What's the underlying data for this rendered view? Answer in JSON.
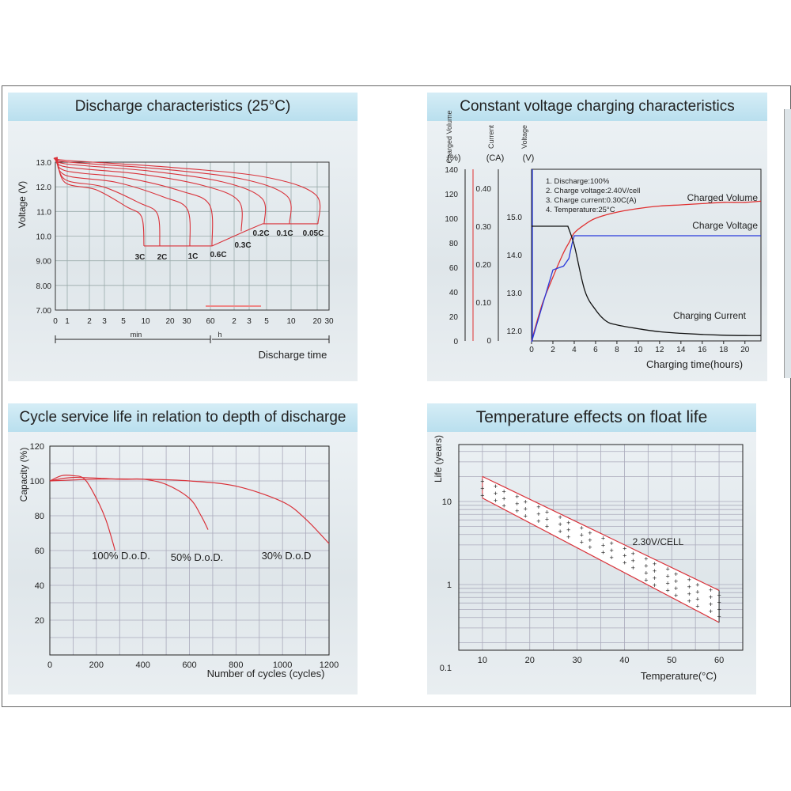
{
  "panels": {
    "discharge": {
      "title": "Discharge characteristics (25°C)",
      "ylabel": "Voltage (V)",
      "yticks": [
        "13.0",
        "12.0",
        "11.0",
        "10.0",
        "9.00",
        "8.00",
        "7.00"
      ],
      "xticks": [
        "0",
        "1",
        "2",
        "3",
        "5",
        "10",
        "20",
        "30",
        "60",
        "2",
        "3",
        "5",
        "10",
        "20",
        "30"
      ],
      "min_label": "min",
      "h_label": "h",
      "xlabel": "Discharge time",
      "rates": [
        "3C",
        "2C",
        "1C",
        "0.6C",
        "0.3C",
        "0.2C",
        "0.1C",
        "0.05C"
      ]
    },
    "charging": {
      "title": "Constant voltage charging characteristics",
      "axis1_title": "Charged Volume",
      "axis1_unit": "(%)",
      "axis1_ticks": [
        "140",
        "120",
        "100",
        "80",
        "60",
        "40",
        "20",
        "0"
      ],
      "axis2_title": "Current",
      "axis2_unit": "(CA)",
      "axis2_ticks": [
        "0.40",
        "0.30",
        "0.20",
        "0.10",
        "0"
      ],
      "axis3_title": "Voltage",
      "axis3_unit": "(V)",
      "axis3_ticks": [
        "15.0",
        "14.0",
        "13.0",
        "12.0"
      ],
      "notes": [
        "1. Discharge:100%",
        "2. Charge voltage:2.40V/cell",
        "3. Charge current:0.30C(A)",
        "4. Temperature:25°C"
      ],
      "xticks": [
        "0",
        "2",
        "4",
        "6",
        "8",
        "10",
        "12",
        "14",
        "16",
        "18",
        "20"
      ],
      "xlabel": "Charging time(hours)",
      "series_labels": {
        "volume": "Charged Volume",
        "voltage": "Charge Voltage",
        "current": "Charging Current"
      },
      "colors": {
        "volume": "#e03030",
        "voltage": "#2a3adb",
        "current": "#111111"
      }
    },
    "cycle": {
      "title": "Cycle service life in relation to depth of discharge",
      "ylabel": "Capacity (%)",
      "yticks": [
        "120",
        "100",
        "80",
        "60",
        "40",
        "20"
      ],
      "xticks": [
        "0",
        "200",
        "400",
        "600",
        "800",
        "1000",
        "1200"
      ],
      "xlabel": "Number of cycles (cycles)",
      "series_labels": [
        "100% D.o.D.",
        "50% D.o.D.",
        "30% D.o.D"
      ]
    },
    "temperature": {
      "title": "Temperature effects on float life",
      "ylabel": "Life (years)",
      "yticks": [
        "10",
        "1",
        "0.1"
      ],
      "xticks": [
        "10",
        "20",
        "30",
        "40",
        "50",
        "60"
      ],
      "xlabel": "Temperature(°C)",
      "band_label": "2.30V/CELL"
    }
  },
  "chart_data": [
    {
      "type": "line",
      "title": "Discharge characteristics (25°C)",
      "ylabel": "Voltage (V)",
      "xlabel": "Discharge time",
      "ylim": [
        7.0,
        13.0
      ],
      "xscale": "log time: 0-60 min, 1-30 h",
      "series": [
        {
          "name": "3C",
          "end_min": 7,
          "end_v": 9.6
        },
        {
          "name": "2C",
          "end_min": 15,
          "end_v": 9.6
        },
        {
          "name": "1C",
          "end_min": 40,
          "end_v": 9.6
        },
        {
          "name": "0.6C",
          "end_min": 60,
          "end_v": 9.6
        },
        {
          "name": "0.3C",
          "end_h": 2.5,
          "end_v": 10.2
        },
        {
          "name": "0.2C",
          "end_h": 4,
          "end_v": 10.5
        },
        {
          "name": "0.1C",
          "end_h": 8,
          "end_v": 10.5
        },
        {
          "name": "0.05C",
          "end_h": 20,
          "end_v": 10.5
        }
      ]
    },
    {
      "type": "line",
      "title": "Constant voltage charging characteristics",
      "xlabel": "Charging time(hours)",
      "xlim": [
        0,
        21.5
      ],
      "series": [
        {
          "name": "Charged Volume",
          "unit": "%",
          "x": [
            0,
            1,
            2,
            3,
            3.5,
            4,
            5,
            6,
            8,
            10,
            12,
            14,
            16,
            18,
            20,
            21.5
          ],
          "values": [
            0,
            30,
            52,
            72,
            80,
            88,
            95,
            100,
            105,
            108,
            110,
            111,
            112,
            113,
            113,
            114
          ]
        },
        {
          "name": "Charge Voltage",
          "unit": "V",
          "x": [
            0,
            2,
            3,
            3.5,
            3.8,
            4,
            6,
            10,
            14,
            18,
            21.5
          ],
          "values": [
            11.7,
            13.6,
            13.7,
            13.9,
            14.3,
            14.5,
            14.5,
            14.5,
            14.5,
            14.5,
            14.5
          ]
        },
        {
          "name": "Charging Current",
          "unit": "CA",
          "x": [
            0,
            1,
            2,
            3,
            3.4,
            4,
            5,
            6,
            7,
            8,
            10,
            12,
            14,
            16,
            18,
            20,
            21.5
          ],
          "values": [
            0.3,
            0.3,
            0.3,
            0.3,
            0.3,
            0.25,
            0.13,
            0.08,
            0.05,
            0.04,
            0.03,
            0.022,
            0.018,
            0.015,
            0.013,
            0.012,
            0.012
          ]
        }
      ]
    },
    {
      "type": "line",
      "title": "Cycle service life in relation to depth of discharge",
      "ylabel": "Capacity (%)",
      "xlabel": "Number of cycles (cycles)",
      "xlim": [
        0,
        1200
      ],
      "ylim": [
        0,
        120
      ],
      "series": [
        {
          "name": "100% D.o.D.",
          "x": [
            0,
            50,
            100,
            150,
            200,
            240,
            270,
            280
          ],
          "values": [
            100,
            103,
            103,
            101,
            90,
            78,
            65,
            60
          ]
        },
        {
          "name": "50% D.o.D.",
          "x": [
            0,
            100,
            300,
            400,
            500,
            600,
            650,
            680
          ],
          "values": [
            100,
            102,
            101,
            101,
            98,
            90,
            80,
            72
          ]
        },
        {
          "name": "30% D.o.D",
          "x": [
            0,
            200,
            400,
            600,
            800,
            1000,
            1100,
            1200
          ],
          "values": [
            100,
            101,
            101,
            100,
            97,
            88,
            78,
            64
          ]
        }
      ]
    },
    {
      "type": "area",
      "title": "Temperature effects on float life",
      "ylabel": "Life (years)",
      "xlabel": "Temperature(°C)",
      "yscale": "log",
      "ylim": [
        0.1,
        40
      ],
      "xlim": [
        5,
        65
      ],
      "series": [
        {
          "name": "2.30V/CELL upper",
          "x": [
            10,
            60
          ],
          "values": [
            20,
            0.85
          ]
        },
        {
          "name": "2.30V/CELL lower",
          "x": [
            10,
            60
          ],
          "values": [
            11,
            0.35
          ]
        }
      ]
    }
  ]
}
